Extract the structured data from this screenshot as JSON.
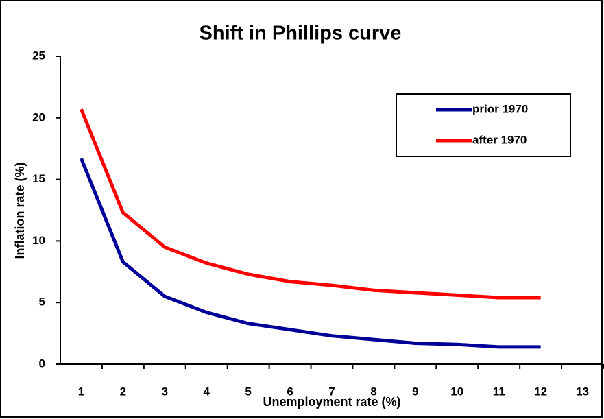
{
  "chart_data": {
    "type": "line",
    "title": "Shift in Phillips curve",
    "x_label": "Unemployment rate (%)",
    "y_label": "Inflation rate (%)",
    "categories": [
      "1",
      "2",
      "3",
      "4",
      "5",
      "6",
      "7",
      "8",
      "9",
      "10",
      "11",
      "12",
      "13"
    ],
    "series": [
      {
        "name": "prior 1970",
        "color": "#000099",
        "values": [
          16.7,
          8.3,
          5.5,
          4.2,
          3.3,
          2.8,
          2.3,
          2.0,
          1.7,
          1.6,
          1.4,
          1.4,
          null
        ]
      },
      {
        "name": "after 1970",
        "color": "#ff0000",
        "values": [
          20.7,
          12.3,
          9.5,
          8.2,
          7.3,
          6.7,
          6.4,
          6.0,
          5.8,
          5.6,
          5.4,
          5.4,
          null
        ]
      }
    ],
    "ylim": [
      0,
      25
    ],
    "yticks": [
      0,
      5,
      10,
      15,
      20,
      25
    ],
    "grid": false,
    "legend": "upper right"
  }
}
